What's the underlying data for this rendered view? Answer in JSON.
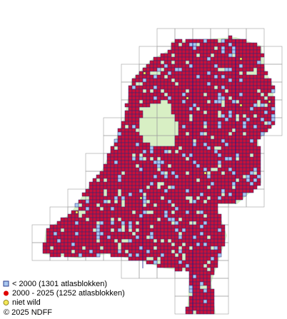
{
  "legend": {
    "items": [
      {
        "label": "< 2000   (1301 atlasblokken)"
      },
      {
        "label": "2000 - 2025 (1252 atlasblokken)"
      },
      {
        "label": "niet wild"
      }
    ]
  },
  "copyright": "© 2025 NDFF"
}
